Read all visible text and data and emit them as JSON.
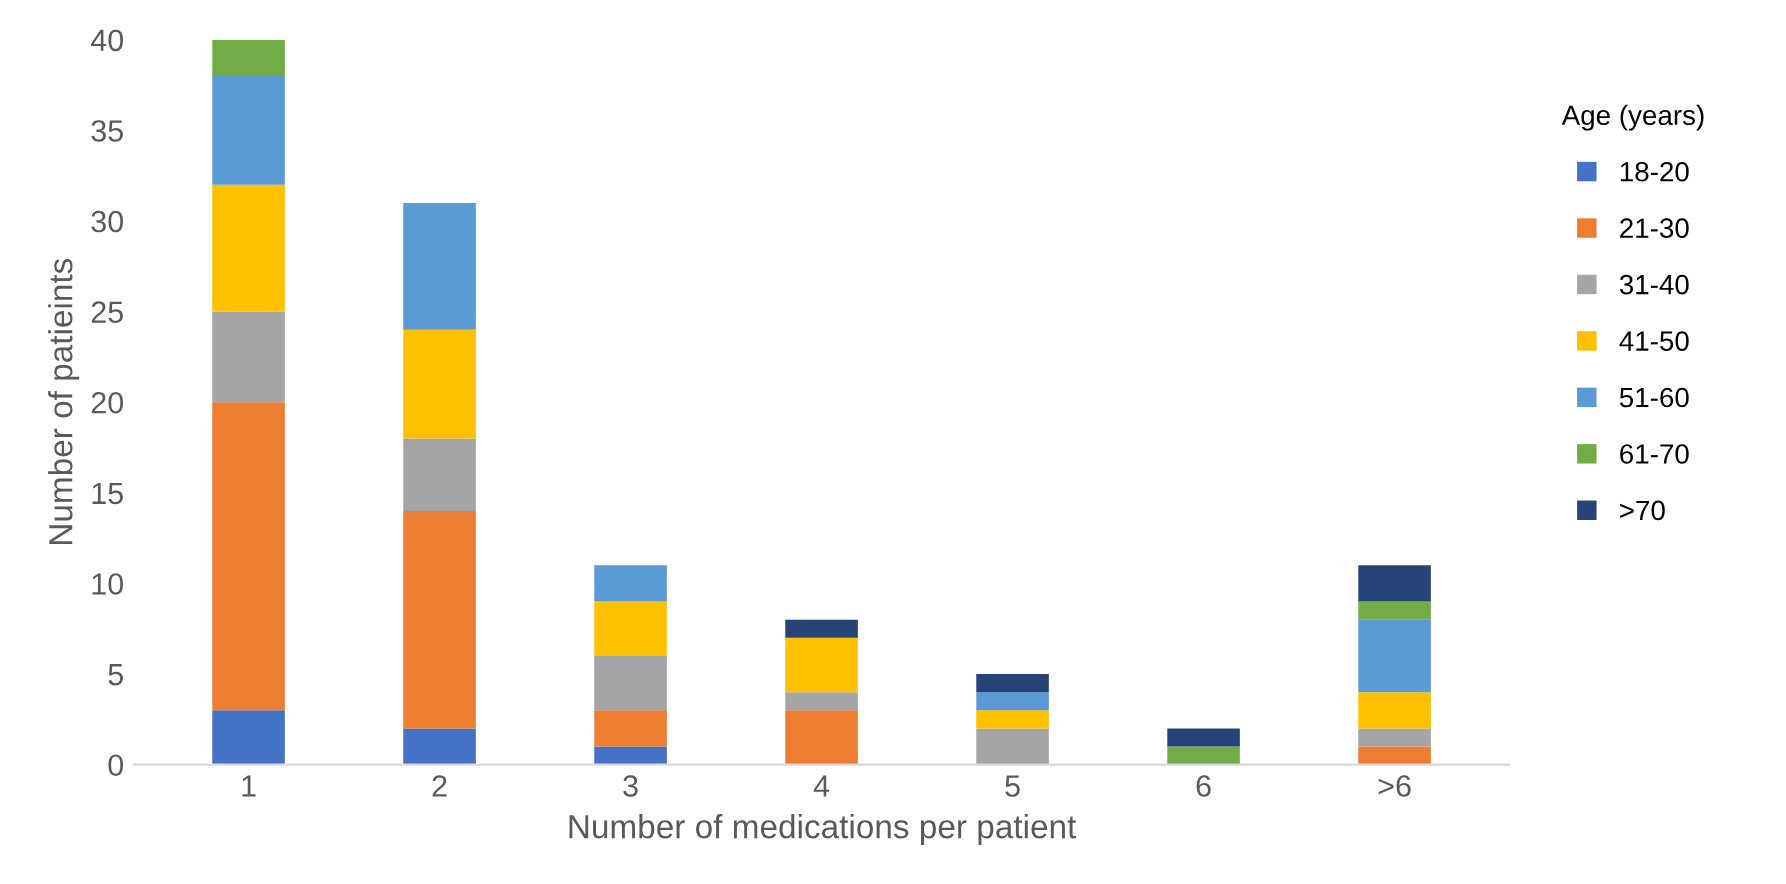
{
  "chart_data": {
    "type": "bar",
    "stacked": true,
    "xlabel": "Number of medications per patient",
    "ylabel": "Number of patieints",
    "legend_title": "Age (years)",
    "legend": "right",
    "grid": false,
    "categories": [
      "1",
      "2",
      "3",
      "4",
      "5",
      "6",
      ">6"
    ],
    "ylim": [
      0,
      40
    ],
    "yticks": [
      0,
      5,
      10,
      15,
      20,
      25,
      30,
      35,
      40
    ],
    "series": [
      {
        "name": "18-20",
        "color": "#4472c4",
        "values": [
          3,
          2,
          1,
          0,
          0,
          0,
          0
        ]
      },
      {
        "name": "21-30",
        "color": "#ed7d31",
        "values": [
          17,
          12,
          2,
          3,
          0,
          0,
          1
        ]
      },
      {
        "name": "31-40",
        "color": "#a5a5a5",
        "values": [
          5,
          4,
          3,
          1,
          2,
          0,
          1
        ]
      },
      {
        "name": "41-50",
        "color": "#ffc000",
        "values": [
          7,
          6,
          3,
          3,
          1,
          0,
          2
        ]
      },
      {
        "name": "51-60",
        "color": "#5b9bd5",
        "values": [
          6,
          7,
          2,
          0,
          1,
          0,
          4
        ]
      },
      {
        "name": "61-70",
        "color": "#70ad47",
        "values": [
          2,
          0,
          0,
          0,
          0,
          1,
          1
        ]
      },
      {
        "name": ">70",
        "color": "#264478",
        "values": [
          0,
          0,
          0,
          1,
          1,
          1,
          2
        ]
      }
    ]
  }
}
